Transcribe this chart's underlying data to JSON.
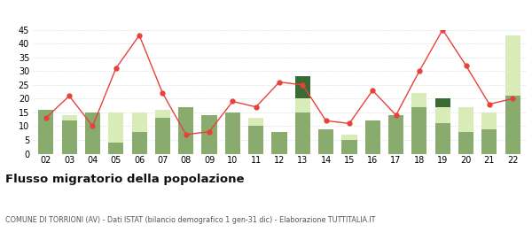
{
  "years": [
    "02",
    "03",
    "04",
    "05",
    "06",
    "07",
    "08",
    "09",
    "10",
    "11",
    "12",
    "13",
    "14",
    "15",
    "16",
    "17",
    "18",
    "19",
    "20",
    "21",
    "22"
  ],
  "iscritti_comuni": [
    16,
    12,
    15,
    4,
    8,
    13,
    17,
    14,
    15,
    10,
    8,
    15,
    9,
    5,
    12,
    14,
    17,
    11,
    8,
    9,
    21
  ],
  "iscritti_estero": [
    0,
    2,
    0,
    11,
    7,
    3,
    0,
    0,
    0,
    3,
    0,
    5,
    0,
    2,
    0,
    0,
    5,
    6,
    9,
    6,
    22
  ],
  "iscritti_altri": [
    0,
    0,
    0,
    0,
    0,
    0,
    0,
    0,
    0,
    0,
    0,
    8,
    0,
    0,
    0,
    0,
    0,
    3,
    0,
    0,
    0
  ],
  "cancellati": [
    13,
    21,
    10,
    31,
    43,
    22,
    7,
    8,
    19,
    17,
    26,
    25,
    12,
    11,
    23,
    14,
    30,
    45,
    32,
    18,
    20
  ],
  "color_comuni": "#8aab6e",
  "color_estero": "#d9ebb8",
  "color_altri": "#3a6b35",
  "color_cancellati": "#e8413b",
  "ylim": [
    0,
    45
  ],
  "yticks": [
    0,
    5,
    10,
    15,
    20,
    25,
    30,
    35,
    40,
    45
  ],
  "title": "Flusso migratorio della popolazione",
  "subtitle": "COMUNE DI TORRIONI (AV) - Dati ISTAT (bilancio demografico 1 gen-31 dic) - Elaborazione TUTTITALIA.IT",
  "bg_color": "#ffffff"
}
